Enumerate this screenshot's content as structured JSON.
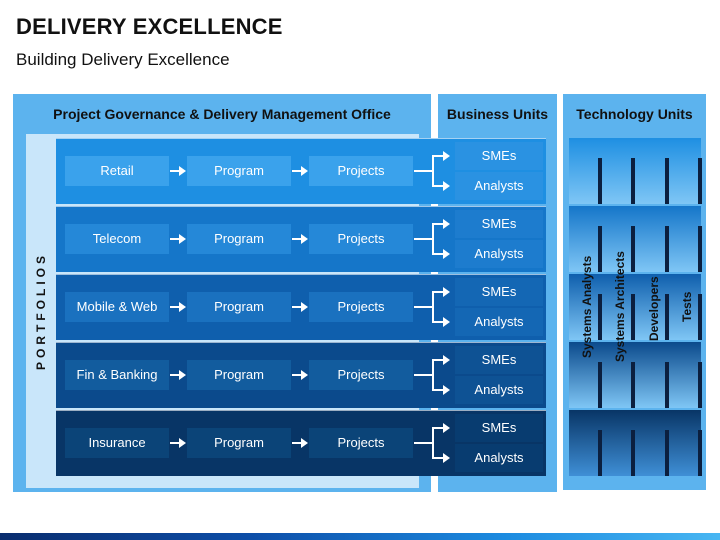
{
  "title": "DELIVERY EXCELLENCE",
  "subtitle": "Building Delivery Excellence",
  "headers": {
    "pmo": "Project Governance & Delivery Management Office",
    "business_units": "Business Units",
    "technology_units": "Technology Units"
  },
  "portfolios_label": "PORTFOLIOS",
  "rows": [
    {
      "portfolio": "Retail",
      "program": "Program",
      "projects": "Projects",
      "bu1": "SMEs",
      "bu2": "Analysts"
    },
    {
      "portfolio": "Telecom",
      "program": "Program",
      "projects": "Projects",
      "bu1": "SMEs",
      "bu2": "Analysts"
    },
    {
      "portfolio": "Mobile & Web",
      "program": "Program",
      "projects": "Projects",
      "bu1": "SMEs",
      "bu2": "Analysts"
    },
    {
      "portfolio": "Fin & Banking",
      "program": "Program",
      "projects": "Projects",
      "bu1": "SMEs",
      "bu2": "Analysts"
    },
    {
      "portfolio": "Insurance",
      "program": "Program",
      "projects": "Projects",
      "bu1": "SMEs",
      "bu2": "Analysts"
    }
  ],
  "technology_roles": [
    "Systems Analysts",
    "Systems Architects",
    "Developers",
    "Tests"
  ],
  "colors": {
    "header": "#5cb3ee",
    "row_1": "#1e8fe2",
    "row_2": "#1576c9",
    "row_3": "#0f5fad",
    "row_4": "#0b4a8c",
    "row_5": "#083566"
  }
}
